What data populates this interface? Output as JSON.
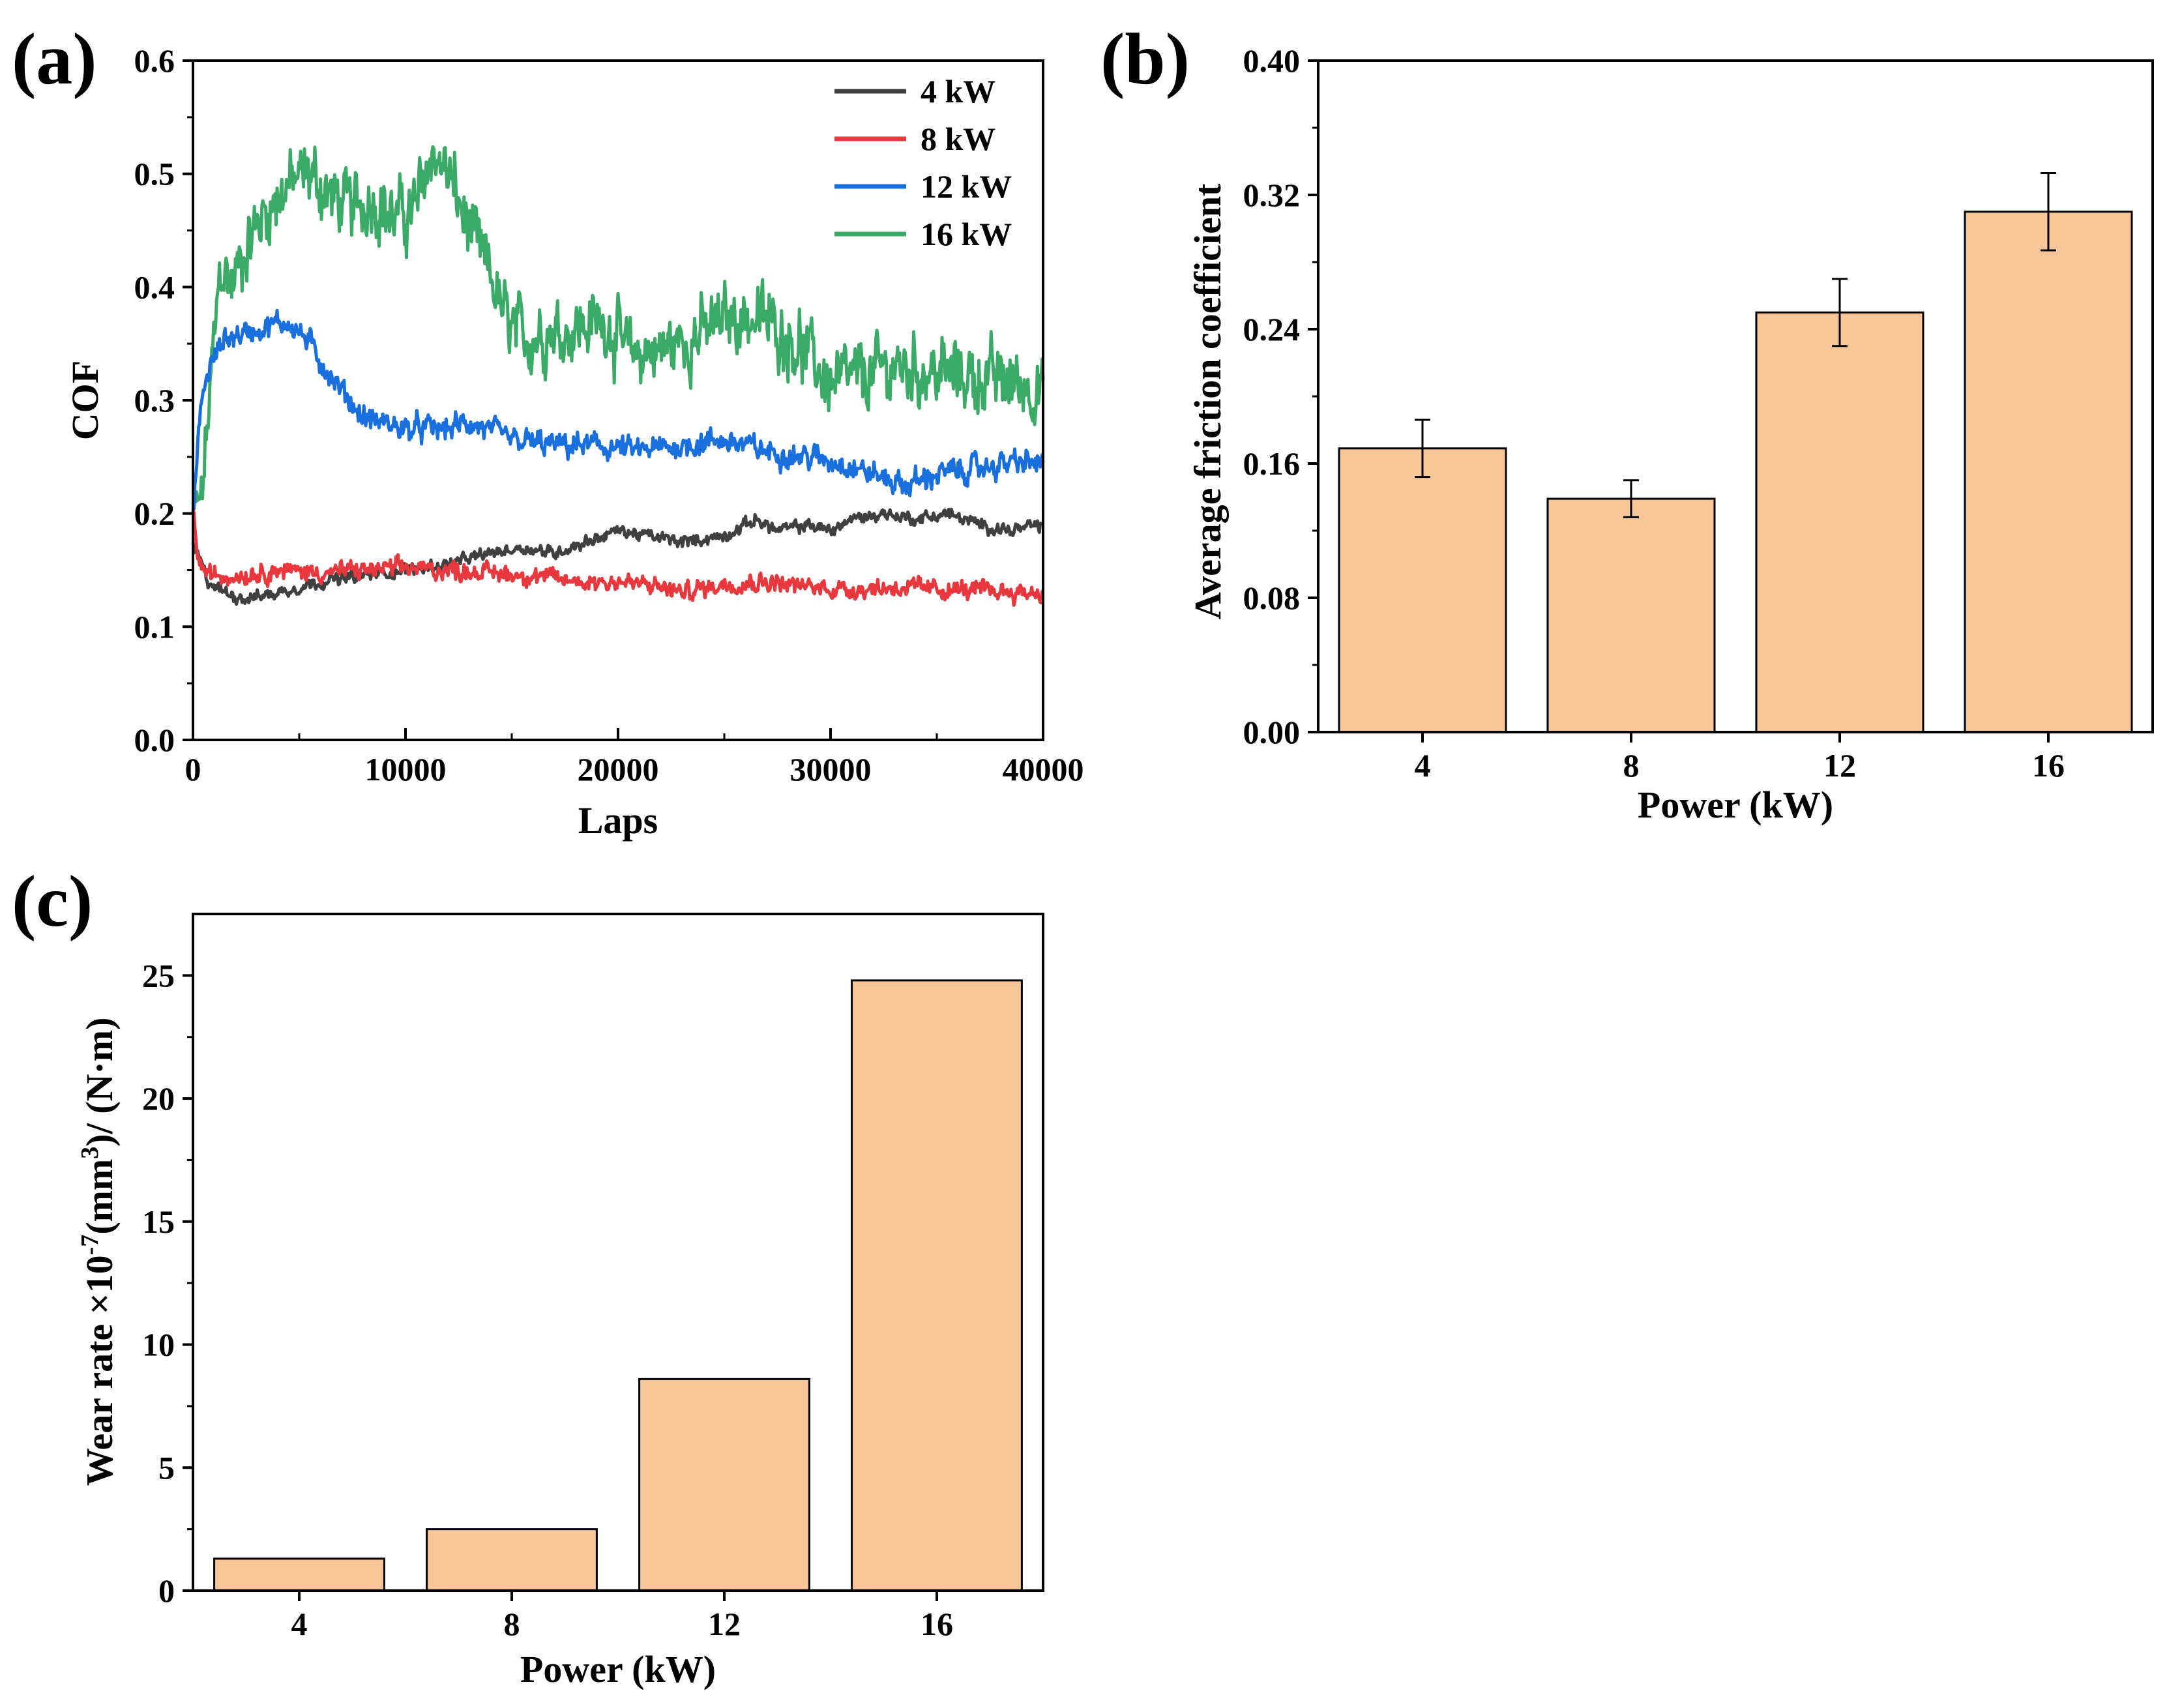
{
  "chart_data": [
    {
      "panel": "(a)",
      "type": "line",
      "xlabel": "Laps",
      "ylabel": "COF",
      "xlim": [
        0,
        40000
      ],
      "ylim": [
        0,
        0.6
      ],
      "xticks": [
        0,
        10000,
        20000,
        30000,
        40000
      ],
      "yticks": [
        0.0,
        0.1,
        0.2,
        0.3,
        0.4,
        0.5,
        0.6
      ],
      "legend_position": "top-right",
      "series": [
        {
          "name": "4 kW",
          "color": "#404040",
          "noise": 0.004,
          "x": [
            0,
            300,
            700,
            1500,
            2500,
            4000,
            6000,
            8000,
            10000,
            12000,
            14000,
            15500,
            17000,
            18500,
            20000,
            21500,
            23000,
            25000,
            26500,
            27500,
            29000,
            30000,
            31000,
            32500,
            34000,
            35500,
            37000,
            38500,
            40000
          ],
          "values": [
            0.17,
            0.16,
            0.14,
            0.13,
            0.125,
            0.13,
            0.14,
            0.145,
            0.15,
            0.155,
            0.165,
            0.17,
            0.165,
            0.175,
            0.185,
            0.18,
            0.175,
            0.18,
            0.195,
            0.185,
            0.19,
            0.185,
            0.195,
            0.2,
            0.195,
            0.2,
            0.19,
            0.185,
            0.19
          ]
        },
        {
          "name": "8 kW",
          "color": "#e8383d",
          "noise": 0.006,
          "x": [
            0,
            300,
            800,
            2000,
            4000,
            6000,
            8000,
            10000,
            12000,
            14000,
            16000,
            18000,
            20000,
            22000,
            23000,
            25000,
            27000,
            29000,
            31000,
            33000,
            35000,
            37000,
            40000
          ],
          "values": [
            0.2,
            0.155,
            0.145,
            0.145,
            0.15,
            0.148,
            0.15,
            0.152,
            0.15,
            0.148,
            0.145,
            0.14,
            0.14,
            0.135,
            0.13,
            0.138,
            0.14,
            0.135,
            0.133,
            0.135,
            0.133,
            0.132,
            0.13
          ]
        },
        {
          "name": "12 kW",
          "color": "#1a6fdf",
          "noise": 0.008,
          "x": [
            0,
            400,
            800,
            1500,
            2500,
            3500,
            4500,
            5500,
            6500,
            8000,
            10000,
            12000,
            13000,
            15000,
            17000,
            19000,
            21000,
            23000,
            25000,
            27000,
            29000,
            30500,
            32000,
            33500,
            35000,
            37000,
            38500,
            40000
          ],
          "values": [
            0.2,
            0.3,
            0.33,
            0.355,
            0.36,
            0.365,
            0.37,
            0.35,
            0.32,
            0.285,
            0.275,
            0.275,
            0.28,
            0.265,
            0.26,
            0.26,
            0.255,
            0.26,
            0.265,
            0.255,
            0.25,
            0.245,
            0.235,
            0.225,
            0.235,
            0.24,
            0.245,
            0.245
          ]
        },
        {
          "name": "16 kW",
          "color": "#3aaa66",
          "noise": 0.022,
          "x": [
            0,
            400,
            900,
            1300,
            1800,
            2600,
            3500,
            4500,
            5500,
            6500,
            7500,
            8500,
            9500,
            10500,
            11200,
            12000,
            13000,
            14000,
            14700,
            15500,
            16500,
            18000,
            19500,
            20500,
            22000,
            24000,
            25500,
            27000,
            28500,
            30000,
            31500,
            33000,
            35000,
            37000,
            39000,
            40000
          ],
          "values": [
            0.2,
            0.21,
            0.33,
            0.42,
            0.4,
            0.44,
            0.47,
            0.49,
            0.5,
            0.48,
            0.47,
            0.48,
            0.46,
            0.47,
            0.52,
            0.5,
            0.45,
            0.41,
            0.37,
            0.355,
            0.36,
            0.365,
            0.37,
            0.34,
            0.345,
            0.36,
            0.375,
            0.37,
            0.35,
            0.315,
            0.32,
            0.33,
            0.325,
            0.32,
            0.315,
            0.31
          ]
        }
      ]
    },
    {
      "panel": "(b)",
      "type": "bar",
      "xlabel": "Power (kW)",
      "ylabel": "Average friction coefficient",
      "categories": [
        "4",
        "8",
        "12",
        "16"
      ],
      "values": [
        0.169,
        0.139,
        0.25,
        0.31
      ],
      "errors": [
        0.017,
        0.011,
        0.02,
        0.023
      ],
      "ylim": [
        0,
        0.4
      ],
      "yticks": [
        0.0,
        0.08,
        0.16,
        0.24,
        0.32,
        0.4
      ],
      "ytick_labels": [
        "0.00",
        "0.08",
        "0.16",
        "0.24",
        "0.32",
        "0.40"
      ],
      "bar_color": "#f8c699"
    },
    {
      "panel": "(c)",
      "type": "bar",
      "xlabel": "Power (kW)",
      "ylabel_parts": [
        "Wear rate ×10",
        "-7",
        "(mm",
        "3",
        ")/ (N·m)"
      ],
      "categories": [
        "4",
        "8",
        "12",
        "16"
      ],
      "values": [
        1.3,
        2.5,
        8.6,
        24.8
      ],
      "ylim": [
        0,
        27.5
      ],
      "yticks": [
        0,
        5,
        10,
        15,
        20,
        25
      ],
      "bar_color": "#f8c699"
    }
  ]
}
